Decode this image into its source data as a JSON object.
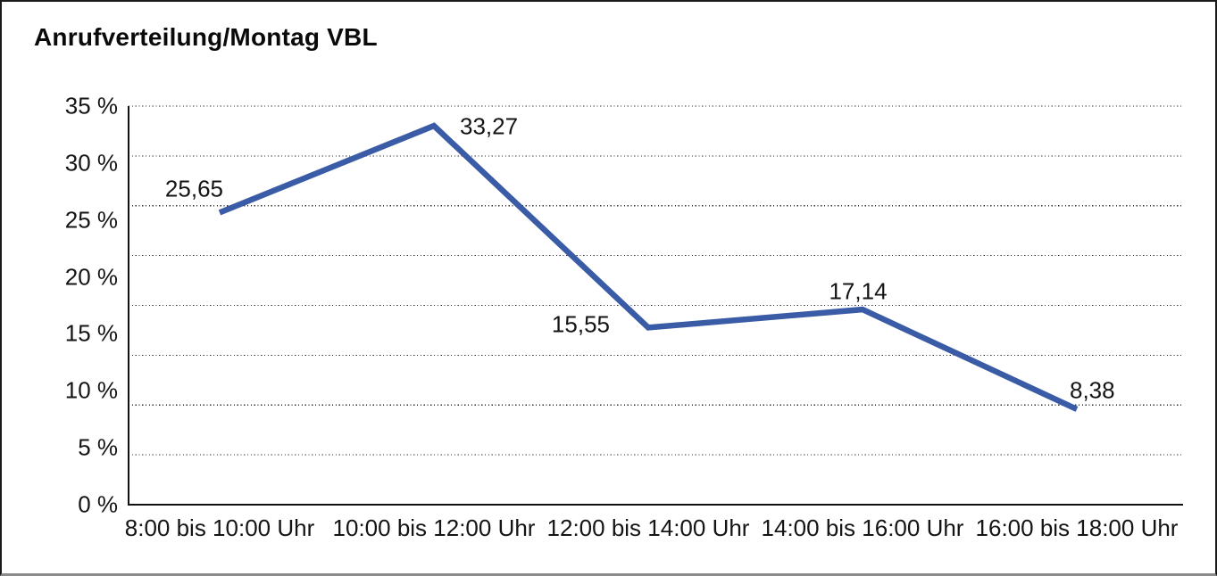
{
  "page": {
    "background": "#ffffff",
    "frame_border_color": "#1a1a1a",
    "frame_bottom_color": "#8a8a8a"
  },
  "chart_data": {
    "type": "line",
    "title": "Anrufverteilung/Montag VBL",
    "categories": [
      "8:00 bis 10:00 Uhr",
      "10:00 bis 12:00 Uhr",
      "12:00 bis 14:00 Uhr",
      "14:00 bis 16:00 Uhr",
      "16:00 bis 18:00 Uhr"
    ],
    "series": [
      {
        "values": [
          25.65,
          33.27,
          15.55,
          17.14,
          8.38
        ],
        "value_labels": [
          "25,65",
          "33,27",
          "15,55",
          "17,14",
          "8,38"
        ],
        "color": "#3a5ba5",
        "line_width": 6.5
      }
    ],
    "xlabel": "",
    "ylabel": "",
    "ylim": [
      0,
      35
    ],
    "yticks": [
      {
        "value": 35,
        "label": "35 %"
      },
      {
        "value": 30,
        "label": "30 %"
      },
      {
        "value": 25,
        "label": "25 %"
      },
      {
        "value": 20,
        "label": "20 %"
      },
      {
        "value": 15,
        "label": "15 %"
      },
      {
        "value": 10,
        "label": "10 %"
      },
      {
        "value": 5,
        "label": "5 %"
      },
      {
        "value": 0,
        "label": "0 %"
      }
    ],
    "grid": {
      "horizontal_line_count": 8,
      "style": "dotted",
      "color": "#2f2f2f"
    },
    "axis_color": "#111111",
    "legend": "none",
    "decimal_separator": ","
  }
}
